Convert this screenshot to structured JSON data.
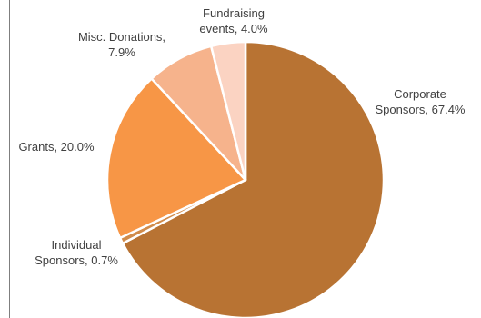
{
  "chart_data": {
    "type": "pie",
    "start_angle_deg": -90,
    "direction": "clockwise",
    "slices": [
      {
        "label_lines": [
          "Corporate",
          "Sponsors, 67.4%"
        ],
        "value": 67.4,
        "color": "#b87333"
      },
      {
        "label_lines": [
          "Individual",
          "Sponsors, 0.7%"
        ],
        "value": 0.7,
        "color": "#d18b4a"
      },
      {
        "label_lines": [
          "Grants, 20.0%"
        ],
        "value": 20.0,
        "color": "#f79646"
      },
      {
        "label_lines": [
          "Misc. Donations,",
          "7.9%"
        ],
        "value": 7.9,
        "color": "#f6b38c"
      },
      {
        "label_lines": [
          "Fundraising",
          "events, 4.0%"
        ],
        "value": 4.0,
        "color": "#fbd3c2"
      }
    ],
    "legend": "none",
    "grid": false
  }
}
